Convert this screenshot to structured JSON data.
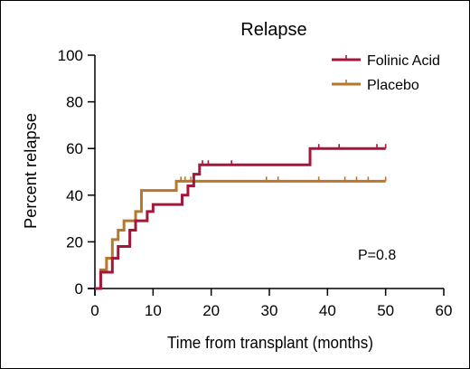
{
  "chart_data": {
    "type": "line",
    "title": "Relapse",
    "xlabel": "Time from transplant (months)",
    "ylabel": "Percent relapse",
    "xlim": [
      0,
      60
    ],
    "ylim": [
      0,
      100
    ],
    "x_ticks": [
      0,
      10,
      20,
      30,
      40,
      50,
      60
    ],
    "y_ticks": [
      0,
      20,
      40,
      60,
      80,
      100
    ],
    "grid": false,
    "legend_position": "top-right",
    "annotation": "P=0.8",
    "series": [
      {
        "name": "Folinic Acid",
        "color": "#a6163a",
        "steps": [
          [
            0,
            0
          ],
          [
            1,
            0
          ],
          [
            1,
            7
          ],
          [
            3,
            7
          ],
          [
            3,
            13
          ],
          [
            4,
            13
          ],
          [
            4,
            18
          ],
          [
            6,
            18
          ],
          [
            6,
            25
          ],
          [
            7,
            25
          ],
          [
            7,
            29
          ],
          [
            9,
            29
          ],
          [
            9,
            33
          ],
          [
            10,
            33
          ],
          [
            10,
            36
          ],
          [
            15,
            36
          ],
          [
            15,
            40
          ],
          [
            16,
            40
          ],
          [
            16,
            44
          ],
          [
            17,
            44
          ],
          [
            17,
            49
          ],
          [
            18,
            49
          ],
          [
            18,
            53
          ],
          [
            37,
            53
          ],
          [
            37,
            60
          ],
          [
            50,
            60
          ]
        ],
        "censored": [
          [
            18.5,
            53
          ],
          [
            19.5,
            53
          ],
          [
            23.5,
            53
          ],
          [
            38.5,
            60
          ],
          [
            42,
            60
          ],
          [
            48.5,
            60
          ],
          [
            50,
            60
          ]
        ]
      },
      {
        "name": "Placebo",
        "color": "#b8772a",
        "steps": [
          [
            0,
            0
          ],
          [
            1,
            0
          ],
          [
            1,
            8
          ],
          [
            2,
            8
          ],
          [
            2,
            13
          ],
          [
            3,
            13
          ],
          [
            3,
            21
          ],
          [
            4,
            21
          ],
          [
            4,
            25
          ],
          [
            5,
            25
          ],
          [
            5,
            29
          ],
          [
            7,
            29
          ],
          [
            7,
            33
          ],
          [
            8,
            33
          ],
          [
            8,
            42
          ],
          [
            14,
            42
          ],
          [
            14,
            46
          ],
          [
            50,
            46
          ]
        ],
        "censored": [
          [
            14.8,
            46
          ],
          [
            15.5,
            46
          ],
          [
            16.5,
            46
          ],
          [
            29.5,
            46
          ],
          [
            31.5,
            46
          ],
          [
            38.5,
            46
          ],
          [
            43,
            46
          ],
          [
            45,
            46
          ],
          [
            47,
            46
          ],
          [
            50,
            46
          ]
        ]
      }
    ]
  }
}
